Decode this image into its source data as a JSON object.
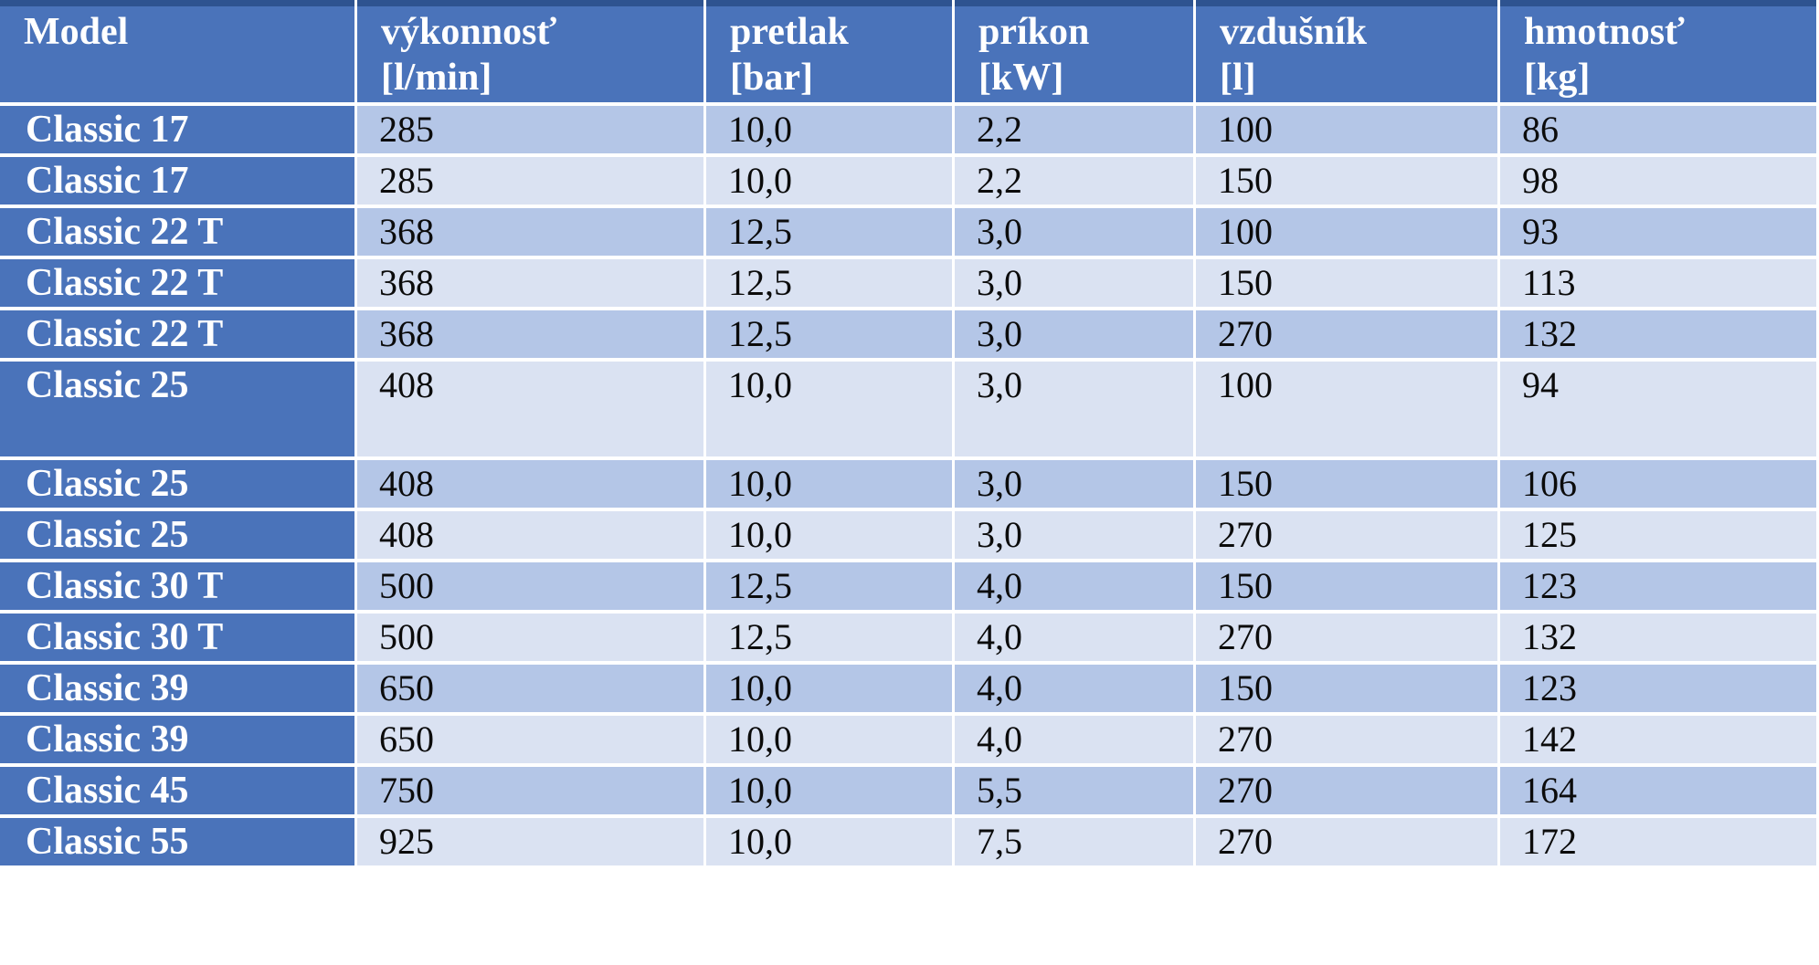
{
  "table": {
    "title": "compressor-specifications",
    "columns": [
      {
        "key": "model",
        "label": "Model",
        "unit": ""
      },
      {
        "key": "vykonnost",
        "label": "výkonnosť",
        "unit": "[l/min]"
      },
      {
        "key": "pretlak",
        "label": "pretlak",
        "unit": "[bar]"
      },
      {
        "key": "prikon",
        "label": "príkon",
        "unit": "[kW]"
      },
      {
        "key": "vzdusnik",
        "label": "vzdušník",
        "unit": "[l]"
      },
      {
        "key": "hmotnost",
        "label": "hmotnosť",
        "unit": "[kg]"
      }
    ],
    "rows": [
      {
        "model": "Classic 17",
        "vykonnost": "285",
        "pretlak": "10,0",
        "prikon": "2,2",
        "vzdusnik": "100",
        "hmotnost": "86"
      },
      {
        "model": "Classic 17",
        "vykonnost": "285",
        "pretlak": "10,0",
        "prikon": "2,2",
        "vzdusnik": "150",
        "hmotnost": "98"
      },
      {
        "model": "Classic 22 T",
        "vykonnost": "368",
        "pretlak": "12,5",
        "prikon": "3,0",
        "vzdusnik": "100",
        "hmotnost": "93"
      },
      {
        "model": "Classic 22 T",
        "vykonnost": "368",
        "pretlak": "12,5",
        "prikon": "3,0",
        "vzdusnik": "150",
        "hmotnost": "113"
      },
      {
        "model": "Classic 22 T",
        "vykonnost": "368",
        "pretlak": "12,5",
        "prikon": "3,0",
        "vzdusnik": "270",
        "hmotnost": "132"
      },
      {
        "model": "Classic 25",
        "vykonnost": "408",
        "pretlak": "10,0",
        "prikon": "3,0",
        "vzdusnik": "100",
        "hmotnost": "94"
      },
      {
        "model": "Classic 25",
        "vykonnost": "408",
        "pretlak": "10,0",
        "prikon": "3,0",
        "vzdusnik": "150",
        "hmotnost": "106"
      },
      {
        "model": "Classic 25",
        "vykonnost": "408",
        "pretlak": "10,0",
        "prikon": "3,0",
        "vzdusnik": "270",
        "hmotnost": "125"
      },
      {
        "model": "Classic 30 T",
        "vykonnost": "500",
        "pretlak": "12,5",
        "prikon": "4,0",
        "vzdusnik": "150",
        "hmotnost": "123"
      },
      {
        "model": "Classic 30 T",
        "vykonnost": "500",
        "pretlak": "12,5",
        "prikon": "4,0",
        "vzdusnik": "270",
        "hmotnost": "132"
      },
      {
        "model": "Classic 39",
        "vykonnost": "650",
        "pretlak": "10,0",
        "prikon": "4,0",
        "vzdusnik": "150",
        "hmotnost": "123"
      },
      {
        "model": "Classic 39",
        "vykonnost": "650",
        "pretlak": "10,0",
        "prikon": "4,0",
        "vzdusnik": "270",
        "hmotnost": "142"
      },
      {
        "model": "Classic 45",
        "vykonnost": "750",
        "pretlak": "10,0",
        "prikon": "5,5",
        "vzdusnik": "270",
        "hmotnost": "164"
      },
      {
        "model": "Classic 55",
        "vykonnost": "925",
        "pretlak": "10,0",
        "prikon": "7,5",
        "vzdusnik": "270",
        "hmotnost": "172"
      }
    ]
  },
  "colors": {
    "header_blue": "#4a73ba",
    "top_border_blue": "#2e5390",
    "band_dark": "#b4c6e7",
    "band_light": "#dae2f2",
    "gridline_white": "#ffffff",
    "header_text": "#ffffff",
    "value_text": "#0b0b0b"
  }
}
